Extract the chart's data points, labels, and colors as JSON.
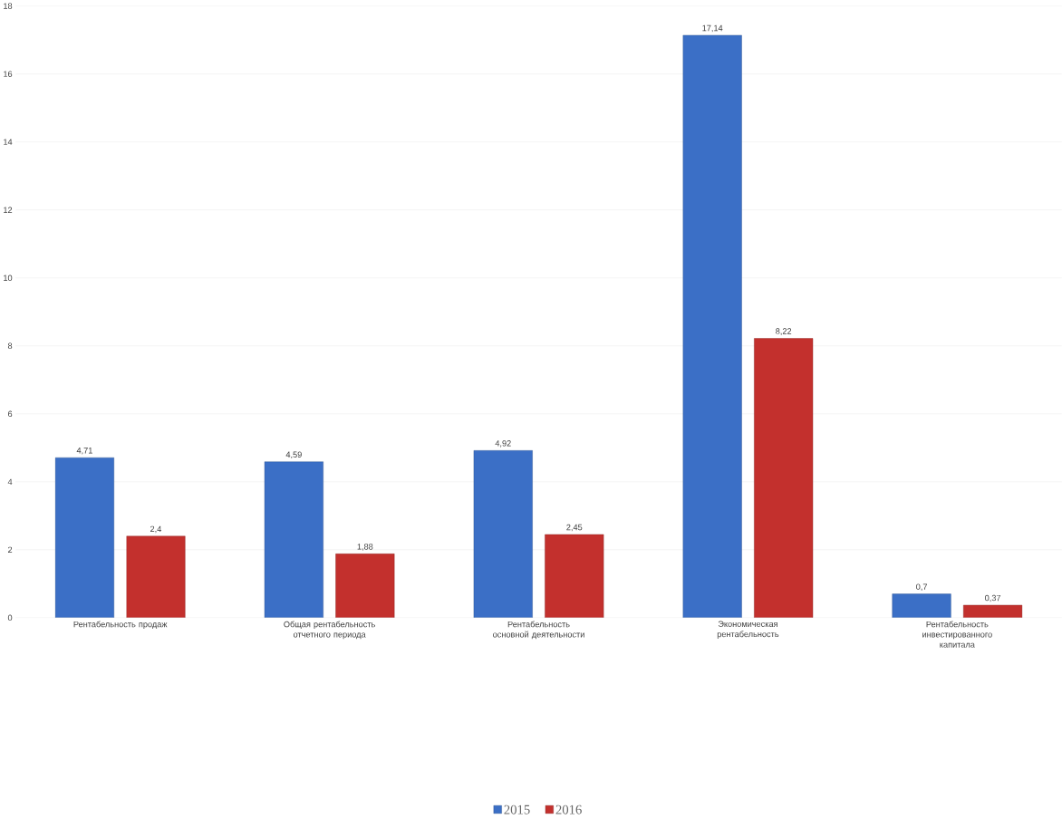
{
  "chart_data": {
    "type": "bar",
    "categories": [
      "Рентабельность продаж",
      "Общая рентабельность отчетного периода",
      "Рентабельность основной деятельности",
      "Экономическая рентабельность",
      "Рентабельность инвестированного капитала"
    ],
    "series": [
      {
        "name": "2015",
        "color": "#3b6fc6",
        "values": [
          4.71,
          4.59,
          4.92,
          17.14,
          0.7
        ],
        "value_labels": [
          "4,71",
          "4,59",
          "4,92",
          "17,14",
          "0,7"
        ]
      },
      {
        "name": "2016",
        "color": "#c3302d",
        "values": [
          2.4,
          1.88,
          2.45,
          8.22,
          0.37
        ],
        "value_labels": [
          "2,4",
          "1,88",
          "2,45",
          "8,22",
          "0,37"
        ]
      }
    ],
    "ylim": [
      0,
      18
    ],
    "yticks": [
      0,
      2,
      4,
      6,
      8,
      10,
      12,
      14,
      16,
      18
    ],
    "grid": "y",
    "legend": "bottom"
  }
}
